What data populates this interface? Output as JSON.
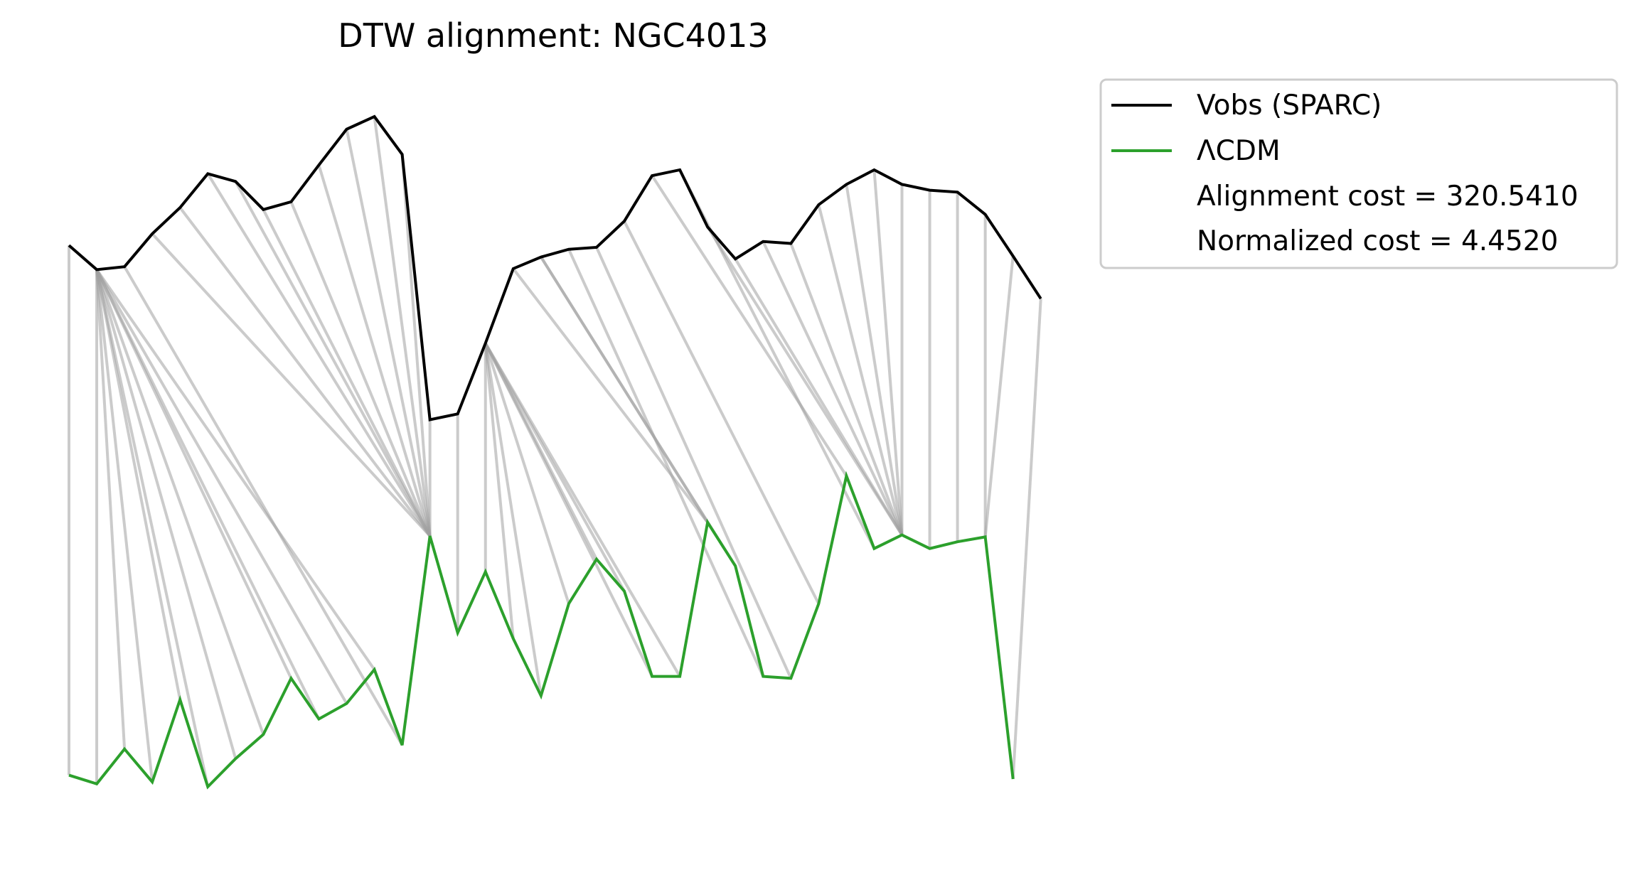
{
  "chart_data": {
    "type": "line",
    "title": "DTW alignment: NGC4013",
    "axes_visible": false,
    "legend_placement": "outside upper right",
    "colors": {
      "obs": "#000000",
      "model": "#2ca02c",
      "connector": "#a0a0a0"
    },
    "series": [
      {
        "name": "Vobs (SPARC)",
        "key": "obs",
        "values": [
          0.82,
          0.795,
          0.798,
          0.832,
          0.859,
          0.894,
          0.886,
          0.857,
          0.865,
          0.903,
          0.94,
          0.953,
          0.914,
          0.64,
          0.646,
          0.719,
          0.796,
          0.808,
          0.816,
          0.818,
          0.845,
          0.892,
          0.898,
          0.839,
          0.806,
          0.824,
          0.822,
          0.862,
          0.883,
          0.898,
          0.883,
          0.877,
          0.875,
          0.852,
          0.809,
          0.765
        ]
      },
      {
        "name": "ΛCDM",
        "key": "model",
        "values": [
          0.273,
          0.264,
          0.3,
          0.266,
          0.351,
          0.261,
          0.29,
          0.315,
          0.373,
          0.331,
          0.347,
          0.382,
          0.304,
          0.52,
          0.42,
          0.483,
          0.414,
          0.355,
          0.45,
          0.496,
          0.463,
          0.375,
          0.375,
          0.534,
          0.489,
          0.375,
          0.373,
          0.45,
          0.582,
          0.507,
          0.521,
          0.507,
          0.514,
          0.519,
          0.269
        ]
      }
    ],
    "alignment_path": [
      [
        0,
        0
      ],
      [
        1,
        1
      ],
      [
        1,
        2
      ],
      [
        1,
        3
      ],
      [
        1,
        4
      ],
      [
        1,
        5
      ],
      [
        1,
        6
      ],
      [
        1,
        7
      ],
      [
        1,
        8
      ],
      [
        1,
        9
      ],
      [
        1,
        10
      ],
      [
        1,
        11
      ],
      [
        2,
        12
      ],
      [
        3,
        13
      ],
      [
        4,
        13
      ],
      [
        5,
        13
      ],
      [
        6,
        13
      ],
      [
        7,
        13
      ],
      [
        8,
        13
      ],
      [
        9,
        13
      ],
      [
        10,
        13
      ],
      [
        11,
        13
      ],
      [
        12,
        13
      ],
      [
        13,
        13
      ],
      [
        14,
        14
      ],
      [
        15,
        15
      ],
      [
        15,
        16
      ],
      [
        15,
        17
      ],
      [
        15,
        18
      ],
      [
        15,
        19
      ],
      [
        15,
        20
      ],
      [
        15,
        21
      ],
      [
        15,
        22
      ],
      [
        16,
        23
      ],
      [
        17,
        23
      ],
      [
        17,
        24
      ],
      [
        18,
        25
      ],
      [
        19,
        26
      ],
      [
        20,
        27
      ],
      [
        21,
        28
      ],
      [
        22,
        29
      ],
      [
        23,
        30
      ],
      [
        24,
        30
      ],
      [
        25,
        30
      ],
      [
        26,
        30
      ],
      [
        27,
        30
      ],
      [
        28,
        30
      ],
      [
        29,
        30
      ],
      [
        30,
        30
      ],
      [
        31,
        31
      ],
      [
        32,
        32
      ],
      [
        33,
        33
      ],
      [
        34,
        33
      ],
      [
        35,
        34
      ]
    ],
    "legend": {
      "entries": [
        {
          "label": "Vobs (SPARC)",
          "color": "#000000"
        },
        {
          "label": "ΛCDM",
          "color": "#2ca02c"
        }
      ],
      "notes": [
        "Alignment cost = 320.5410",
        "Normalized cost = 4.4520"
      ]
    }
  }
}
